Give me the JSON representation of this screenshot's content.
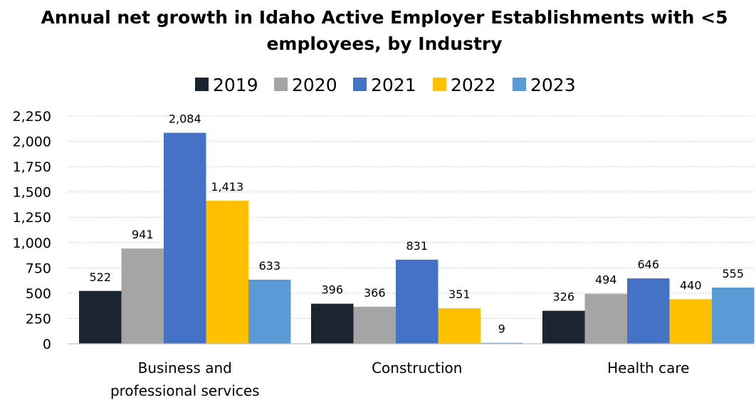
{
  "chart_data": {
    "type": "bar",
    "title_lines": [
      "Annual net growth in Idaho Active Employer Establishments with <5",
      "employees, by Industry"
    ],
    "categories": [
      [
        "Business and",
        "professional services"
      ],
      [
        "Construction"
      ],
      [
        "Health care"
      ]
    ],
    "series": [
      {
        "name": "2019",
        "color": "#1b2531",
        "values": [
          522,
          396,
          326
        ]
      },
      {
        "name": "2020",
        "color": "#a5a5a5",
        "values": [
          941,
          366,
          494
        ]
      },
      {
        "name": "2021",
        "color": "#4472c4",
        "values": [
          2084,
          831,
          646
        ]
      },
      {
        "name": "2022",
        "color": "#ffc000",
        "values": [
          1413,
          351,
          440
        ]
      },
      {
        "name": "2023",
        "color": "#5b9bd5",
        "values": [
          633,
          9,
          555
        ]
      }
    ],
    "data_labels": [
      [
        "522",
        "396",
        "326"
      ],
      [
        "941",
        "366",
        "494"
      ],
      [
        "2,084",
        "831",
        "646"
      ],
      [
        "1,413",
        "351",
        "440"
      ],
      [
        "633",
        "9",
        "555"
      ]
    ],
    "yticks": [
      0,
      250,
      500,
      750,
      1000,
      1250,
      1500,
      1750,
      2000,
      2250
    ],
    "ytick_labels": [
      "0",
      "250",
      "500",
      "750",
      "1,000",
      "1,250",
      "1,500",
      "1,750",
      "2,000",
      "2,250"
    ],
    "ylim": [
      0,
      2250
    ],
    "grid": true,
    "legend_position": "top"
  }
}
